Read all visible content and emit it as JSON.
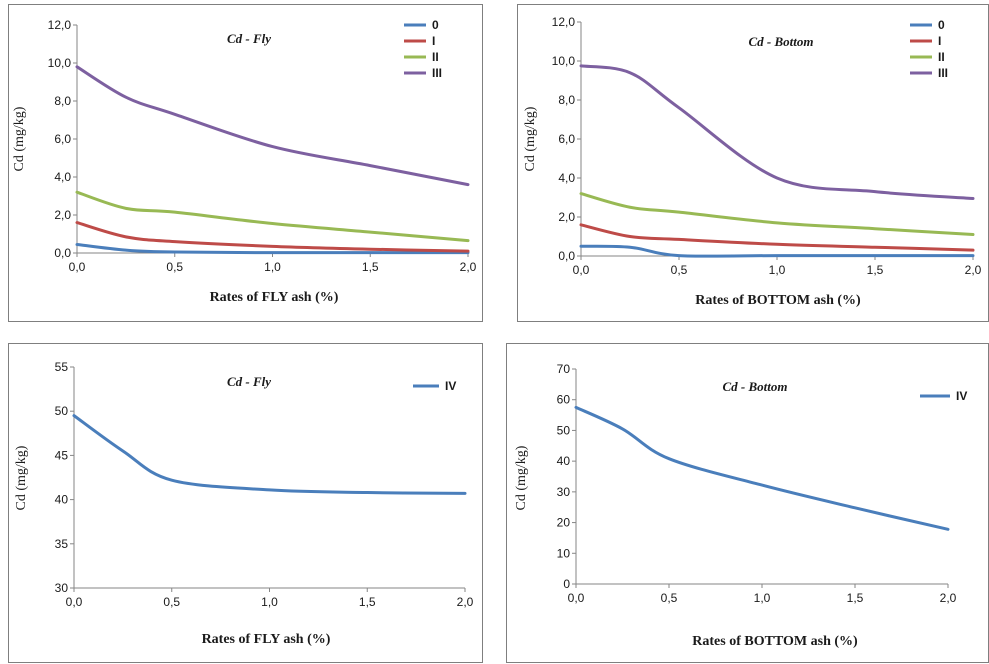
{
  "chart_data": [
    {
      "type": "line",
      "title": "Cd - Fly",
      "xlabel": "Rates of FLY ash (%)",
      "ylabel": "Cd (mg/kg)",
      "xticks": [
        "0,0",
        "0,5",
        "1,0",
        "1,5",
        "2,0"
      ],
      "yticks": [
        "0,0",
        "2,0",
        "4,0",
        "6,0",
        "8,0",
        "10,0",
        "12,0"
      ],
      "xlim": [
        0,
        2
      ],
      "ylim": [
        0,
        12
      ],
      "legend_position": "top-right",
      "series": [
        {
          "name": "0",
          "color": "#4a7ebb",
          "x": [
            0,
            0.25,
            0.5,
            1,
            1.5,
            2
          ],
          "y": [
            0.45,
            0.15,
            0.05,
            0.02,
            0.02,
            0.02
          ]
        },
        {
          "name": "I",
          "color": "#be4b48",
          "x": [
            0,
            0.25,
            0.5,
            1,
            1.5,
            2
          ],
          "y": [
            1.6,
            0.85,
            0.6,
            0.35,
            0.2,
            0.1
          ]
        },
        {
          "name": "II",
          "color": "#98b954",
          "x": [
            0,
            0.25,
            0.5,
            1,
            1.5,
            2
          ],
          "y": [
            3.2,
            2.35,
            2.15,
            1.55,
            1.1,
            0.65
          ]
        },
        {
          "name": "III",
          "color": "#7d60a0",
          "x": [
            0,
            0.25,
            0.5,
            1,
            1.5,
            2
          ],
          "y": [
            9.8,
            8.2,
            7.3,
            5.6,
            4.6,
            3.6
          ]
        }
      ]
    },
    {
      "type": "line",
      "title": "Cd - Bottom",
      "xlabel": "Rates of BOTTOM ash (%)",
      "ylabel": "Cd (mg/kg)",
      "xticks": [
        "0,0",
        "0,5",
        "1,0",
        "1,5",
        "2,0"
      ],
      "yticks": [
        "0,0",
        "2,0",
        "4,0",
        "6,0",
        "8,0",
        "10,0",
        "12,0"
      ],
      "xlim": [
        0,
        2
      ],
      "ylim": [
        0,
        12
      ],
      "legend_position": "top-right",
      "series": [
        {
          "name": "0",
          "color": "#4a7ebb",
          "x": [
            0,
            0.25,
            0.5,
            1,
            1.5,
            2
          ],
          "y": [
            0.5,
            0.45,
            0.02,
            0.02,
            0.02,
            0.02
          ]
        },
        {
          "name": "I",
          "color": "#be4b48",
          "x": [
            0,
            0.25,
            0.5,
            1,
            1.5,
            2
          ],
          "y": [
            1.6,
            1.0,
            0.85,
            0.6,
            0.45,
            0.3
          ]
        },
        {
          "name": "II",
          "color": "#98b954",
          "x": [
            0,
            0.25,
            0.5,
            1,
            1.5,
            2
          ],
          "y": [
            3.2,
            2.5,
            2.25,
            1.7,
            1.4,
            1.1
          ]
        },
        {
          "name": "III",
          "color": "#7d60a0",
          "x": [
            0,
            0.25,
            0.5,
            1,
            1.5,
            2
          ],
          "y": [
            9.75,
            9.4,
            7.6,
            4.0,
            3.3,
            2.95
          ]
        }
      ]
    },
    {
      "type": "line",
      "title": "Cd - Fly",
      "xlabel": "Rates of FLY ash (%)",
      "ylabel": "Cd (mg/kg)",
      "xticks": [
        "0,0",
        "0,5",
        "1,0",
        "1,5",
        "2,0"
      ],
      "yticks": [
        "30",
        "35",
        "40",
        "45",
        "50",
        "55"
      ],
      "xlim": [
        0,
        2
      ],
      "ylim": [
        30,
        55
      ],
      "legend_position": "top-right",
      "series": [
        {
          "name": "IV",
          "color": "#4a7ebb",
          "x": [
            0,
            0.25,
            0.5,
            1,
            1.5,
            2
          ],
          "y": [
            49.5,
            45.5,
            42.2,
            41.1,
            40.8,
            40.7
          ]
        }
      ]
    },
    {
      "type": "line",
      "title": "Cd - Bottom",
      "xlabel": "Rates of BOTTOM ash (%)",
      "ylabel": "Cd (mg/kg)",
      "xticks": [
        "0,0",
        "0,5",
        "1,0",
        "1,5",
        "2,0"
      ],
      "yticks": [
        "0",
        "10",
        "20",
        "30",
        "40",
        "50",
        "60",
        "70"
      ],
      "xlim": [
        0,
        2
      ],
      "ylim": [
        0,
        70
      ],
      "legend_position": "top-right",
      "series": [
        {
          "name": "IV",
          "color": "#4a7ebb",
          "x": [
            0,
            0.25,
            0.5,
            1,
            1.5,
            2
          ],
          "y": [
            57.5,
            50.5,
            40.8,
            32.2,
            24.8,
            17.8
          ]
        }
      ]
    }
  ]
}
